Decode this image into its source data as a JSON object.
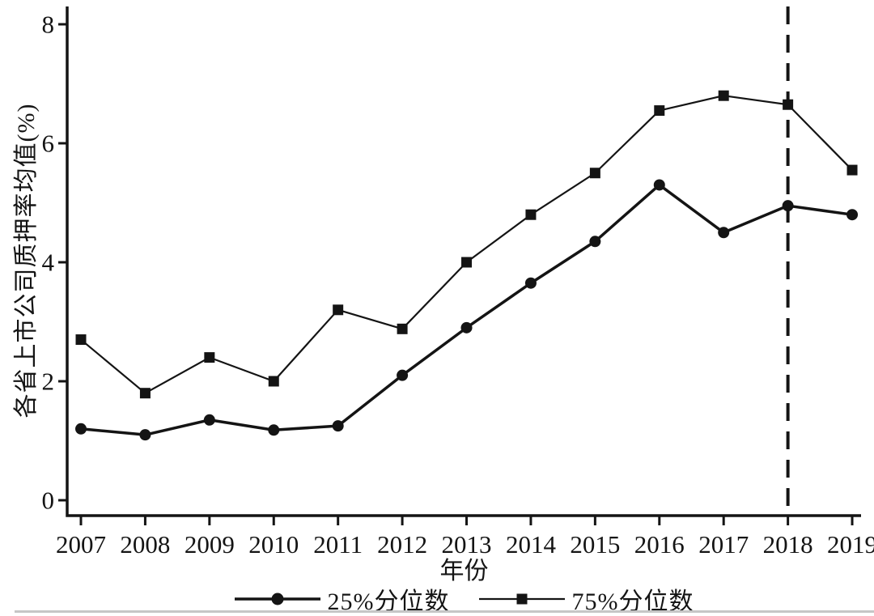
{
  "chart_data": {
    "type": "line",
    "title": "",
    "xlabel": "年份",
    "ylabel": "各省上市公司质押率均值(%)",
    "x": [
      2007,
      2008,
      2009,
      2010,
      2011,
      2012,
      2013,
      2014,
      2015,
      2016,
      2017,
      2018,
      2019
    ],
    "series": [
      {
        "name": "25%分位数",
        "marker": "circle",
        "line_width": 3.5,
        "values": [
          1.2,
          1.1,
          1.35,
          1.18,
          1.25,
          2.1,
          2.9,
          3.65,
          4.35,
          5.3,
          4.5,
          4.95,
          4.8
        ]
      },
      {
        "name": "75%分位数",
        "marker": "square",
        "line_width": 2.2,
        "values": [
          2.7,
          1.8,
          2.4,
          2.0,
          3.2,
          2.88,
          4.0,
          4.8,
          5.5,
          6.55,
          6.8,
          6.65,
          5.55
        ]
      }
    ],
    "ylim": [
      0,
      8
    ],
    "yticks": [
      0,
      2,
      4,
      6,
      8
    ],
    "grid": false,
    "legend_position": "bottom",
    "reference_line": {
      "axis": "x",
      "value": 2018,
      "style": "dashed"
    },
    "line_color": "#141414"
  }
}
